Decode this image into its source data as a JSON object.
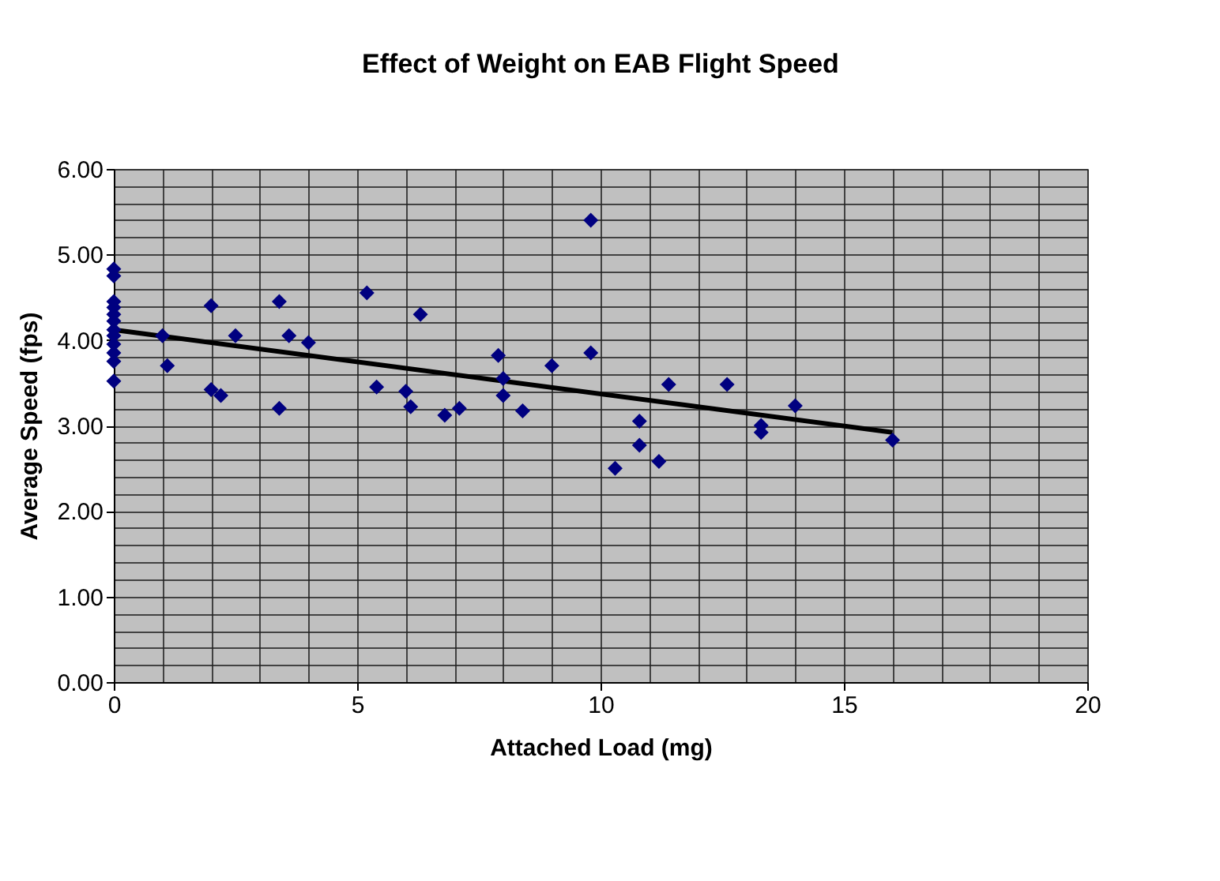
{
  "chart_data": {
    "type": "scatter",
    "title": "Effect of Weight on EAB Flight Speed",
    "xlabel": "Attached Load (mg)",
    "ylabel": "Average Speed (fps)",
    "xlim": [
      0,
      20
    ],
    "ylim": [
      0,
      6
    ],
    "xticks": [
      0,
      {
        "value": 1,
        "label": null
      },
      {
        "value": 2,
        "label": null
      },
      {
        "value": 3,
        "label": null
      },
      {
        "value": 4,
        "label": null
      },
      5,
      {
        "value": 6,
        "label": null
      },
      {
        "value": 7,
        "label": null
      },
      {
        "value": 8,
        "label": null
      },
      {
        "value": 9,
        "label": null
      },
      10,
      {
        "value": 11,
        "label": null
      },
      {
        "value": 12,
        "label": null
      },
      {
        "value": 13,
        "label": null
      },
      {
        "value": 14,
        "label": null
      },
      15,
      {
        "value": 16,
        "label": null
      },
      {
        "value": 17,
        "label": null
      },
      {
        "value": 18,
        "label": null
      },
      {
        "value": 19,
        "label": null
      },
      20
    ],
    "yticks": [
      {
        "value": 0,
        "label": "0.00"
      },
      {
        "value": 0.2,
        "label": null
      },
      {
        "value": 0.4,
        "label": null
      },
      {
        "value": 0.6,
        "label": null
      },
      {
        "value": 0.8,
        "label": null
      },
      {
        "value": 1,
        "label": "1.00"
      },
      {
        "value": 1.2,
        "label": null
      },
      {
        "value": 1.4,
        "label": null
      },
      {
        "value": 1.6,
        "label": null
      },
      {
        "value": 1.8,
        "label": null
      },
      {
        "value": 2,
        "label": "2.00"
      },
      {
        "value": 2.2,
        "label": null
      },
      {
        "value": 2.4,
        "label": null
      },
      {
        "value": 2.6,
        "label": null
      },
      {
        "value": 2.8,
        "label": null
      },
      {
        "value": 3,
        "label": "3.00"
      },
      {
        "value": 3.2,
        "label": null
      },
      {
        "value": 3.4,
        "label": null
      },
      {
        "value": 3.6,
        "label": null
      },
      {
        "value": 3.8,
        "label": null
      },
      {
        "value": 4,
        "label": "4.00"
      },
      {
        "value": 4.2,
        "label": null
      },
      {
        "value": 4.4,
        "label": null
      },
      {
        "value": 4.6,
        "label": null
      },
      {
        "value": 4.8,
        "label": null
      },
      {
        "value": 5,
        "label": "5.00"
      },
      {
        "value": 5.2,
        "label": null
      },
      {
        "value": 5.4,
        "label": null
      },
      {
        "value": 5.6,
        "label": null
      },
      {
        "value": 5.8,
        "label": null
      },
      {
        "value": 6,
        "label": "6.00"
      }
    ],
    "grid": true,
    "series": [
      {
        "color": "#000080",
        "marker": "diamond",
        "x": [
          0,
          0,
          0,
          0,
          0,
          0,
          0,
          0,
          0,
          0,
          0,
          0,
          1,
          1.1,
          2,
          2,
          2.2,
          2.5,
          3.4,
          3.4,
          3.6,
          4,
          5.2,
          5.4,
          6,
          6.1,
          6.3,
          6.8,
          7.1,
          7.9,
          8,
          8,
          8.4,
          9,
          9.8,
          9.8,
          10.3,
          10.8,
          10.8,
          11.2,
          11.4,
          12.6,
          13.3,
          13.3,
          14,
          16
        ],
        "values": [
          4.83,
          4.75,
          4.45,
          4.38,
          4.3,
          4.22,
          4.12,
          4.05,
          3.95,
          3.85,
          3.75,
          3.52,
          4.05,
          3.7,
          4.4,
          3.42,
          3.35,
          4.05,
          4.45,
          3.2,
          4.05,
          3.97,
          4.55,
          3.45,
          3.4,
          3.22,
          4.3,
          3.12,
          3.2,
          3.82,
          3.55,
          3.35,
          3.17,
          3.7,
          5.4,
          3.85,
          2.5,
          3.05,
          2.77,
          2.58,
          3.48,
          3.48,
          3.0,
          2.92,
          3.23,
          2.83
        ]
      },
      {
        "type": "line",
        "color": "#000000",
        "marker": "none",
        "x": [
          0,
          16
        ],
        "values": [
          4.12,
          2.92
        ]
      }
    ]
  }
}
